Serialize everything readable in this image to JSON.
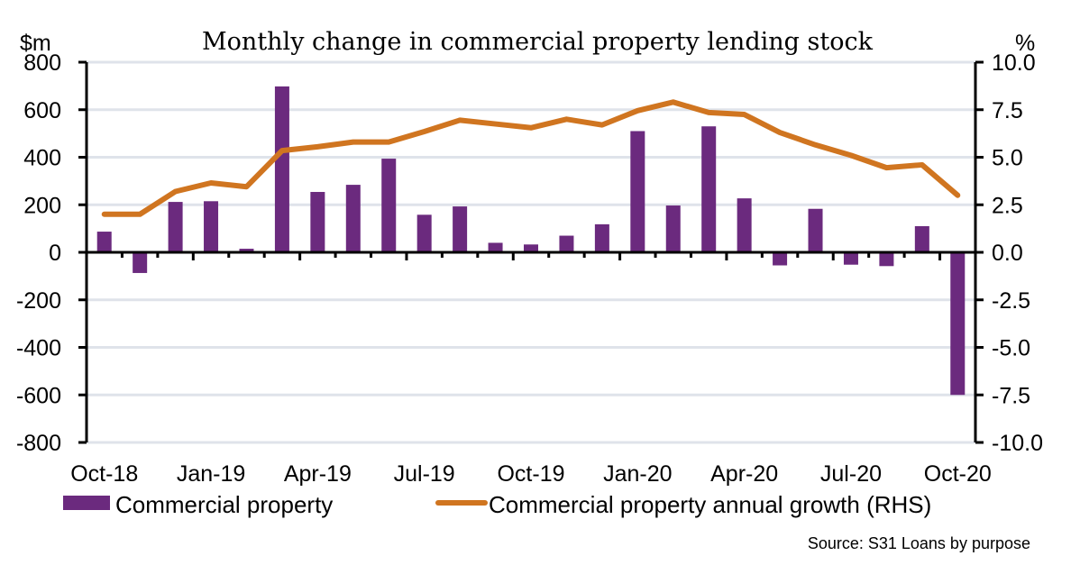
{
  "chart_data": {
    "type": "bar+line",
    "title": "Monthly change in commercial property lending stock",
    "left_axis": {
      "unit_label": "$m",
      "range": [
        -800,
        800
      ],
      "ticks": [
        800,
        600,
        400,
        200,
        0,
        -200,
        -400,
        -600,
        -800
      ],
      "tick_labels": [
        "800",
        "600",
        "400",
        "200",
        "0",
        "-200",
        "-400",
        "-600",
        "-800"
      ]
    },
    "right_axis": {
      "unit_label": "%",
      "range": [
        -10,
        10
      ],
      "ticks": [
        10,
        7.5,
        5,
        2.5,
        0,
        -2.5,
        -5,
        -7.5,
        -10
      ],
      "tick_labels": [
        "10.0",
        "7.5",
        "5.0",
        "2.5",
        "0.0",
        "-2.5",
        "-5.0",
        "-7.5",
        "-10.0"
      ]
    },
    "grid": true,
    "categories": [
      "Oct-18",
      "Nov-18",
      "Dec-18",
      "Jan-19",
      "Feb-19",
      "Mar-19",
      "Apr-19",
      "May-19",
      "Jun-19",
      "Jul-19",
      "Aug-19",
      "Sep-19",
      "Oct-19",
      "Nov-19",
      "Dec-19",
      "Jan-20",
      "Feb-20",
      "Mar-20",
      "Apr-20",
      "May-20",
      "Jun-20",
      "Jul-20",
      "Aug-20",
      "Sep-20",
      "Oct-20"
    ],
    "x_tick_labels": [
      {
        "index": 0,
        "label": "Oct-18"
      },
      {
        "index": 3,
        "label": "Jan-19"
      },
      {
        "index": 6,
        "label": "Apr-19"
      },
      {
        "index": 9,
        "label": "Jul-19"
      },
      {
        "index": 12,
        "label": "Oct-19"
      },
      {
        "index": 15,
        "label": "Jan-20"
      },
      {
        "index": 18,
        "label": "Apr-20"
      },
      {
        "index": 21,
        "label": "Jul-20"
      },
      {
        "index": 24,
        "label": "Oct-20"
      }
    ],
    "series": [
      {
        "name": "Commercial property",
        "type": "bar",
        "axis": "left",
        "color": "#6b2a7e",
        "values": [
          87,
          -87,
          212,
          215,
          15,
          698,
          254,
          284,
          394,
          158,
          193,
          40,
          33,
          70,
          118,
          510,
          197,
          530,
          227,
          -55,
          183,
          -52,
          -58,
          110,
          -600
        ]
      },
      {
        "name": "Commercial property annual growth (RHS)",
        "type": "line",
        "axis": "right",
        "color": "#d07520",
        "values": [
          2.0,
          2.0,
          3.2,
          3.65,
          3.45,
          5.35,
          5.55,
          5.8,
          5.8,
          6.35,
          6.95,
          6.75,
          6.55,
          7.0,
          6.7,
          7.45,
          7.9,
          7.35,
          7.25,
          6.3,
          5.65,
          5.1,
          4.45,
          4.6,
          3.0
        ]
      }
    ],
    "legend": {
      "placement": "bottom",
      "entries": [
        "Commercial property",
        "Commercial property annual growth (RHS)"
      ]
    },
    "source": "Source: S31 Loans by purpose"
  },
  "colors": {
    "gridline": "#dfe3ea",
    "axis": "#000000"
  }
}
